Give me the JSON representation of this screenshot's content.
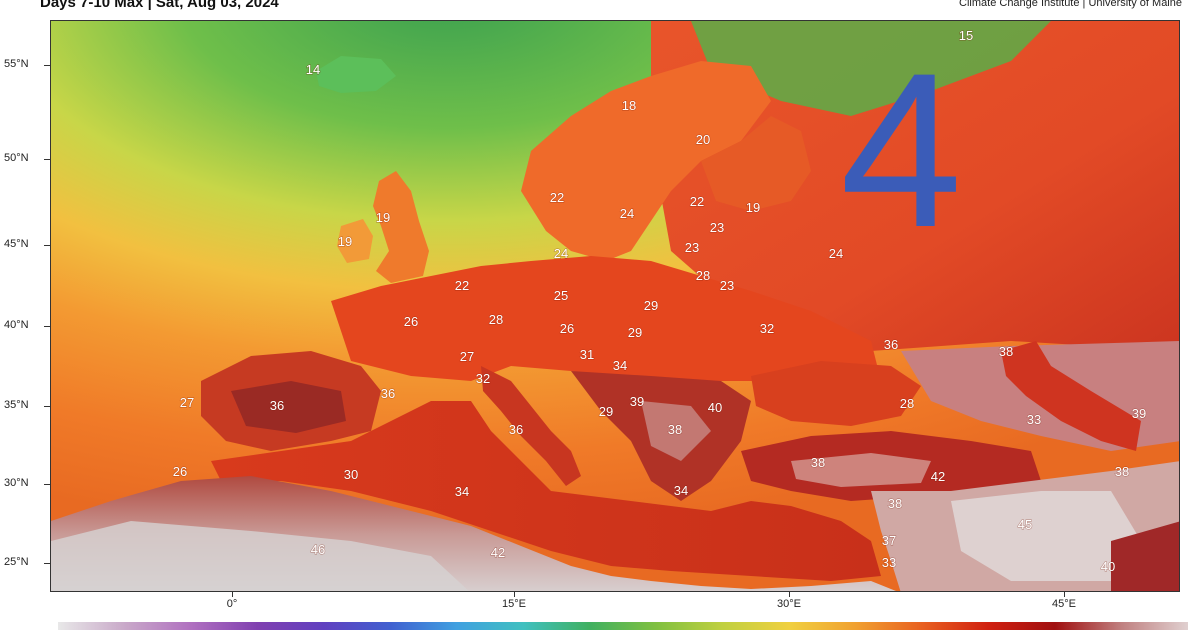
{
  "header": {
    "title": "Days 7-10 Max | Sat, Aug 03, 2024",
    "credit": "Climate Change Institute | University of Maine"
  },
  "overlay_number": "4",
  "axes": {
    "lat_labels": [
      "55°N",
      "50°N",
      "45°N",
      "40°N",
      "35°N",
      "30°N",
      "25°N"
    ],
    "lon_labels": [
      "0°",
      "15°E",
      "30°E",
      "45°E"
    ]
  },
  "temperatures": [
    "15",
    "14",
    "18",
    "20",
    "22",
    "24",
    "22",
    "19",
    "23",
    "19",
    "19",
    "23",
    "24",
    "24",
    "22",
    "28",
    "23",
    "25",
    "29",
    "26",
    "28",
    "26",
    "29",
    "32",
    "36",
    "38",
    "27",
    "31",
    "34",
    "32",
    "36",
    "27",
    "36",
    "29",
    "39",
    "40",
    "38",
    "28",
    "33",
    "39",
    "36",
    "26",
    "30",
    "34",
    "34",
    "42",
    "38",
    "38",
    "38",
    "46",
    "45",
    "42",
    "37",
    "33",
    "40"
  ],
  "colorbar_colors": [
    "#e8e8e8",
    "#c9a9c9",
    "#b070c0",
    "#8040b0",
    "#6040c0",
    "#4060d0",
    "#40a0e0",
    "#40c0c0",
    "#40b060",
    "#80c040",
    "#c0d040",
    "#f0d040",
    "#f0a030",
    "#e86020",
    "#d02010",
    "#a01010",
    "#c08080",
    "#e0d0d0"
  ]
}
